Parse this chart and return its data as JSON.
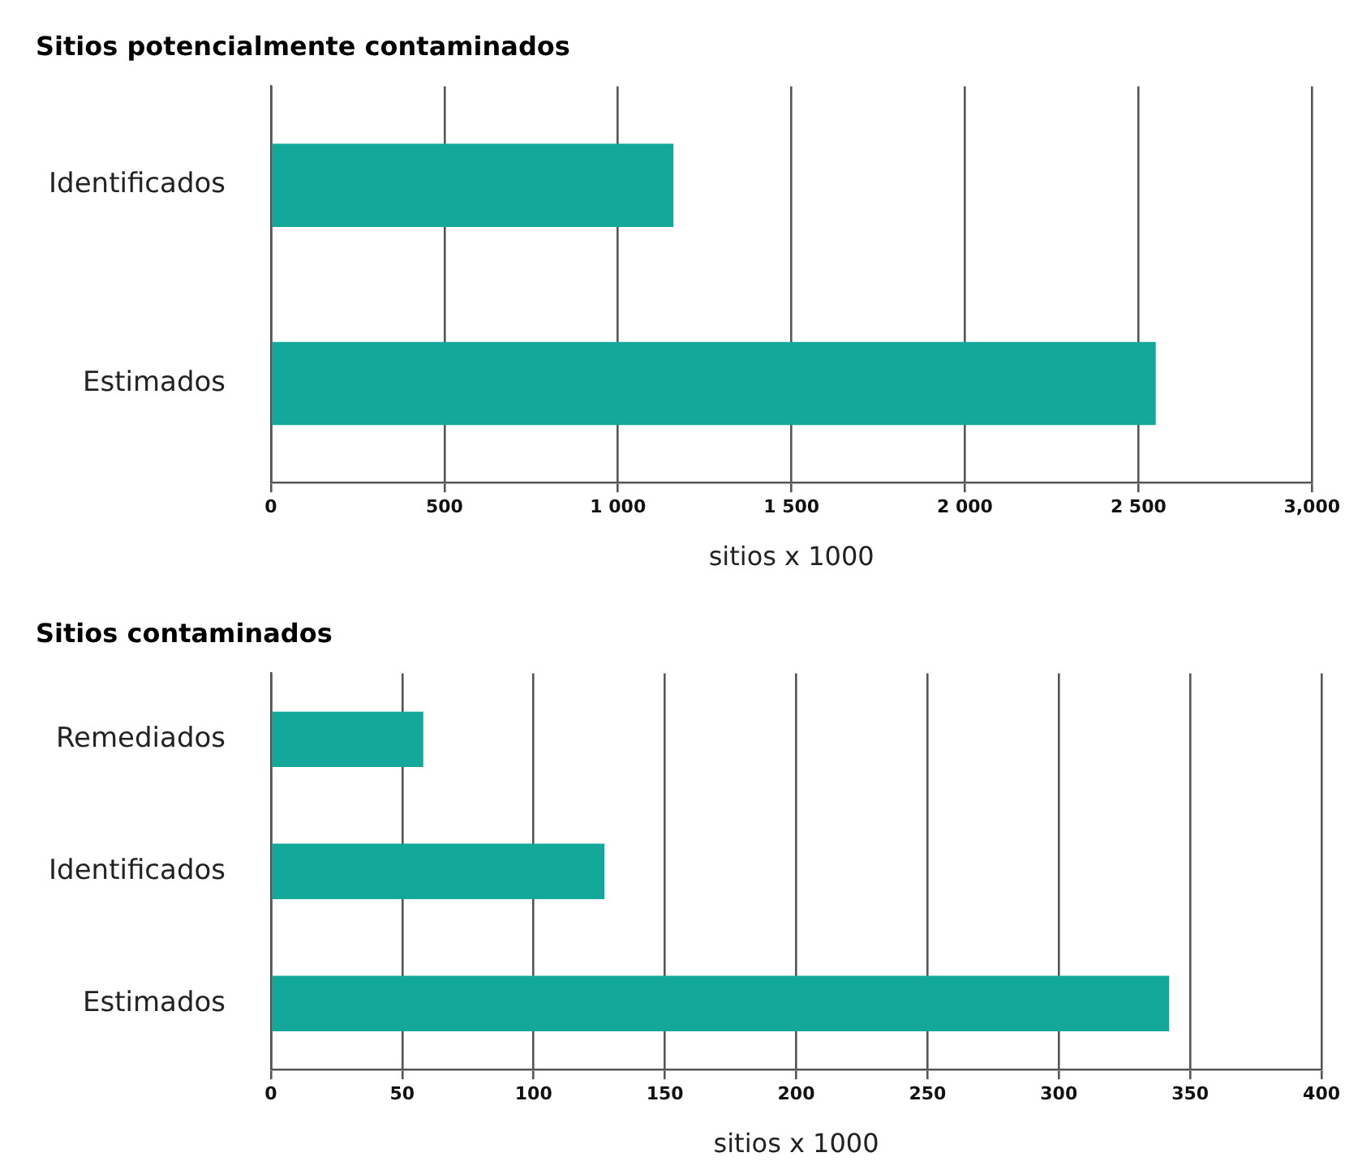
{
  "chart_data": [
    {
      "type": "bar",
      "orientation": "horizontal",
      "title": "Sitios potencialmente contaminados",
      "xlabel": "sitios x 1000",
      "categories": [
        "Identificados",
        "Estimados"
      ],
      "values": [
        1160,
        2550
      ],
      "color": "#14a89a",
      "xlim": [
        0,
        3000
      ],
      "xticks": [
        0,
        500,
        {
          "value": 1000,
          "label": "1 000"
        },
        {
          "value": 1500,
          "label": "1 500"
        },
        {
          "value": 2000,
          "label": "2 000"
        },
        {
          "value": 2500,
          "label": "2 500"
        },
        {
          "value": 3000,
          "label": "3,000"
        }
      ],
      "grid": "x"
    },
    {
      "type": "bar",
      "orientation": "horizontal",
      "title": "Sitios contaminados",
      "xlabel": "sitios x 1000",
      "categories": [
        "Remediados",
        "Identificados",
        "Estimados"
      ],
      "values": [
        58,
        127,
        342
      ],
      "color": "#14a89a",
      "xlim": [
        0,
        400
      ],
      "xticks": [
        0,
        50,
        100,
        150,
        200,
        250,
        300,
        350,
        400
      ],
      "grid": "x"
    }
  ]
}
